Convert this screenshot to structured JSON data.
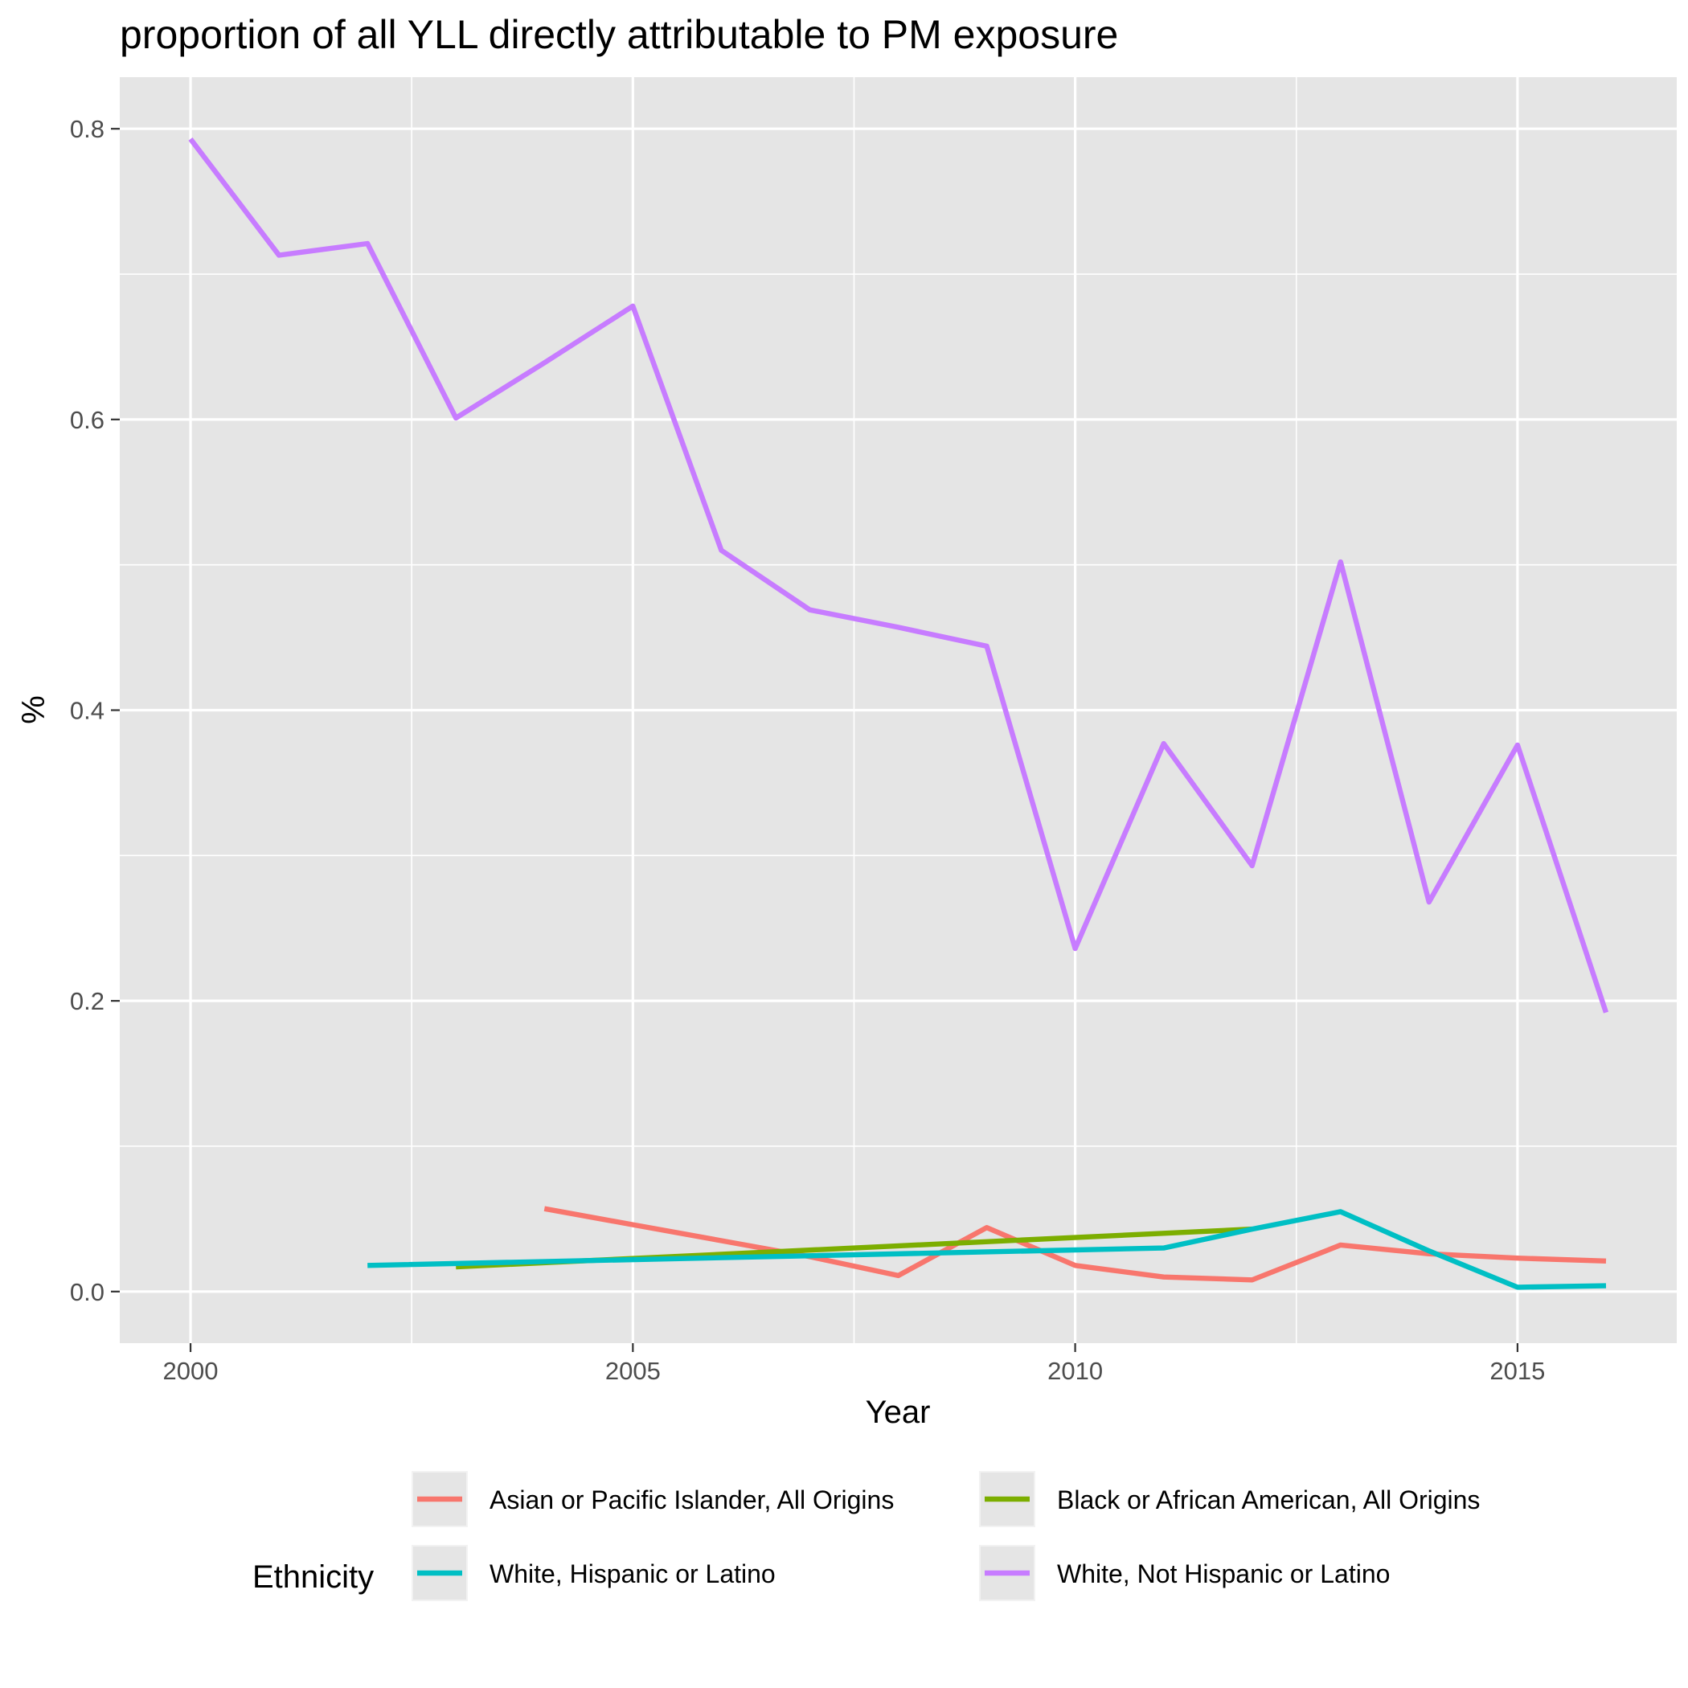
{
  "chart_data": {
    "type": "line",
    "title": "proportion of all YLL directly attributable to PM exposure",
    "xlabel": "Year",
    "ylabel": "%",
    "xlim": [
      1999.2,
      2016.8
    ],
    "ylim": [
      -0.0355,
      0.8355
    ],
    "x_ticks": [
      2000,
      2005,
      2010,
      2015
    ],
    "x_tick_labels": [
      "2000",
      "2005",
      "2010",
      "2015"
    ],
    "x_minor_ticks": [
      2002.5,
      2007.5,
      2012.5
    ],
    "y_ticks": [
      0.0,
      0.2,
      0.4,
      0.6,
      0.8
    ],
    "y_tick_labels": [
      "0.0",
      "0.2",
      "0.4",
      "0.6",
      "0.8"
    ],
    "y_minor_ticks": [
      0.1,
      0.3,
      0.5,
      0.7
    ],
    "grid": true,
    "background": "#e5e5e5",
    "legend": {
      "title": "Ethnicity",
      "position": "bottom"
    },
    "series": [
      {
        "name": "Asian or Pacific Islander, All Origins",
        "color": "#f8766d",
        "x": [
          2004,
          2005,
          2006,
          2007,
          2008,
          2009,
          2010,
          2011,
          2012,
          2013,
          2014,
          2015,
          2016
        ],
        "values": [
          0.057,
          0.046,
          0.035,
          0.024,
          0.011,
          0.044,
          0.018,
          0.01,
          0.008,
          0.032,
          0.026,
          0.023,
          0.021
        ]
      },
      {
        "name": "Black or African American, All Origins",
        "color": "#7cae00",
        "x": [
          2003,
          2012
        ],
        "values": [
          0.017,
          0.043
        ]
      },
      {
        "name": "White, Hispanic or Latino",
        "color": "#00bfc4",
        "x": [
          2002,
          2011,
          2012,
          2013,
          2014,
          2015,
          2016
        ],
        "values": [
          0.018,
          0.03,
          0.043,
          0.055,
          0.028,
          0.003,
          0.004
        ]
      },
      {
        "name": "White, Not Hispanic or Latino",
        "color": "#c77cff",
        "x": [
          2000,
          2001,
          2002,
          2003,
          2004,
          2005,
          2006,
          2007,
          2008,
          2009,
          2010,
          2011,
          2012,
          2013,
          2014,
          2015,
          2016
        ],
        "values": [
          0.793,
          0.713,
          0.721,
          0.601,
          0.639,
          0.678,
          0.51,
          0.469,
          0.457,
          0.444,
          0.236,
          0.377,
          0.293,
          0.502,
          0.268,
          0.376,
          0.192
        ]
      }
    ]
  }
}
